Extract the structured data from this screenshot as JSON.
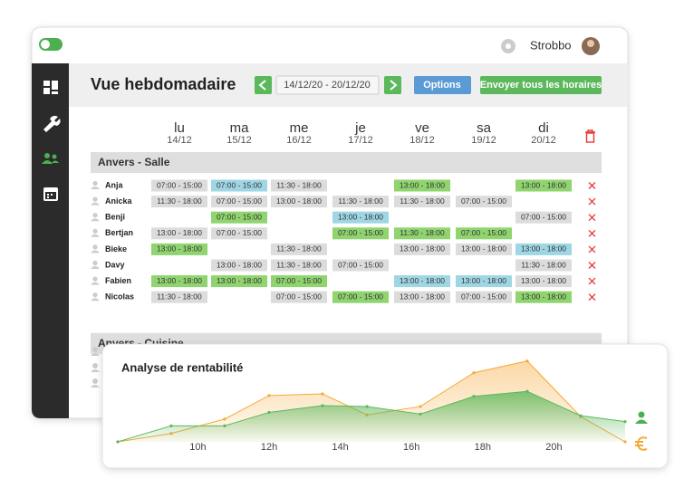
{
  "topbar": {
    "user": "Strobbo"
  },
  "header": {
    "title": "Vue hebdomadaire",
    "date_range": "14/12/20 - 20/12/20",
    "options": "Options",
    "send_all": "Envoyer tous les horaires"
  },
  "days": [
    {
      "name": "lu",
      "date": "14/12"
    },
    {
      "name": "ma",
      "date": "15/12"
    },
    {
      "name": "me",
      "date": "16/12"
    },
    {
      "name": "je",
      "date": "17/12"
    },
    {
      "name": "ve",
      "date": "18/12"
    },
    {
      "name": "sa",
      "date": "19/12"
    },
    {
      "name": "di",
      "date": "20/12"
    }
  ],
  "sections": [
    {
      "title": "Anvers - Salle",
      "rows": [
        {
          "name": "Anja",
          "shifts": [
            {
              "time": "07:00 - 15:00",
              "color": "#dcdcdc"
            },
            {
              "time": "07:00 - 15:00",
              "color": "#9fd6e4"
            },
            {
              "time": "11:30 - 18:00",
              "color": "#dcdcdc"
            },
            null,
            {
              "time": "13:00 - 18:00",
              "color": "#8fd46e"
            },
            null,
            {
              "time": "13:00 - 18:00",
              "color": "#8fd46e"
            }
          ]
        },
        {
          "name": "Anicka",
          "shifts": [
            {
              "time": "11:30 - 18:00",
              "color": "#dcdcdc"
            },
            {
              "time": "07:00 - 15:00",
              "color": "#dcdcdc"
            },
            {
              "time": "13:00 - 18:00",
              "color": "#dcdcdc"
            },
            {
              "time": "11:30 - 18:00",
              "color": "#dcdcdc"
            },
            {
              "time": "11:30 - 18:00",
              "color": "#dcdcdc"
            },
            {
              "time": "07:00 - 15:00",
              "color": "#dcdcdc"
            },
            null
          ]
        },
        {
          "name": "Benji",
          "shifts": [
            null,
            {
              "time": "07:00 - 15:00",
              "color": "#8fd46e"
            },
            null,
            {
              "time": "13:00 - 18:00",
              "color": "#9fd6e4"
            },
            null,
            null,
            {
              "time": "07:00 - 15:00",
              "color": "#dcdcdc"
            }
          ]
        },
        {
          "name": "Bertjan",
          "shifts": [
            {
              "time": "13:00 - 18:00",
              "color": "#dcdcdc"
            },
            {
              "time": "07:00 - 15:00",
              "color": "#dcdcdc"
            },
            null,
            {
              "time": "07:00 - 15:00",
              "color": "#8fd46e"
            },
            {
              "time": "11:30 - 18:00",
              "color": "#8fd46e"
            },
            {
              "time": "07:00 - 15:00",
              "color": "#8fd46e"
            },
            null
          ]
        },
        {
          "name": "Bieke",
          "shifts": [
            {
              "time": "13:00 - 18:00",
              "color": "#8fd46e"
            },
            null,
            {
              "time": "11:30 - 18:00",
              "color": "#dcdcdc"
            },
            null,
            {
              "time": "13:00 - 18:00",
              "color": "#dcdcdc"
            },
            {
              "time": "13:00 - 18:00",
              "color": "#dcdcdc"
            },
            {
              "time": "13:00 - 18:00",
              "color": "#9fd6e4"
            }
          ]
        },
        {
          "name": "Davy",
          "shifts": [
            null,
            {
              "time": "13:00 - 18:00",
              "color": "#dcdcdc"
            },
            {
              "time": "11:30 - 18:00",
              "color": "#dcdcdc"
            },
            {
              "time": "07:00 - 15:00",
              "color": "#dcdcdc"
            },
            null,
            null,
            {
              "time": "11:30 - 18:00",
              "color": "#dcdcdc"
            }
          ]
        },
        {
          "name": "Fabien",
          "shifts": [
            {
              "time": "13:00 - 18:00",
              "color": "#8fd46e"
            },
            {
              "time": "13:00 - 18:00",
              "color": "#8fd46e"
            },
            {
              "time": "07:00 - 15:00",
              "color": "#8fd46e"
            },
            null,
            {
              "time": "13:00 - 18:00",
              "color": "#9fd6e4"
            },
            {
              "time": "13:00 - 18:00",
              "color": "#9fd6e4"
            },
            {
              "time": "13:00 - 18:00",
              "color": "#dcdcdc"
            }
          ]
        },
        {
          "name": "Nicolas",
          "shifts": [
            {
              "time": "11:30 - 18:00",
              "color": "#dcdcdc"
            },
            null,
            {
              "time": "07:00 - 15:00",
              "color": "#dcdcdc"
            },
            {
              "time": "07:00 - 15:00",
              "color": "#8fd46e"
            },
            {
              "time": "13:00 - 18:00",
              "color": "#dcdcdc"
            },
            {
              "time": "07:00 - 15:00",
              "color": "#dcdcdc"
            },
            {
              "time": "13:00 - 18:00",
              "color": "#8fd46e"
            }
          ]
        }
      ]
    },
    {
      "title": "Anvers - Cuisine",
      "rows": []
    }
  ],
  "chart_data": {
    "type": "area",
    "title": "Analyse de rentabilité",
    "x": [
      7.75,
      9.25,
      10.75,
      12,
      13.5,
      14.75,
      16.25,
      17.75,
      19.25,
      20.75,
      22
    ],
    "series": [
      {
        "color": "#f5a938",
        "values": [
          0,
          10,
          27,
          55,
          57,
          32,
          42,
          82,
          96,
          30,
          0
        ]
      },
      {
        "color": "#5cb85c",
        "values": [
          0,
          19,
          19,
          35,
          43,
          42,
          33,
          54,
          60,
          31,
          24
        ]
      }
    ],
    "xlim": [
      7.75,
      22
    ],
    "ylim": [
      0,
      100
    ],
    "xticks": [
      {
        "value": 10,
        "label": "10h"
      },
      {
        "value": 12,
        "label": "12h"
      },
      {
        "value": 14,
        "label": "14h"
      },
      {
        "value": 16,
        "label": "16h"
      },
      {
        "value": 18,
        "label": "18h"
      },
      {
        "value": 20,
        "label": "20h"
      }
    ]
  }
}
